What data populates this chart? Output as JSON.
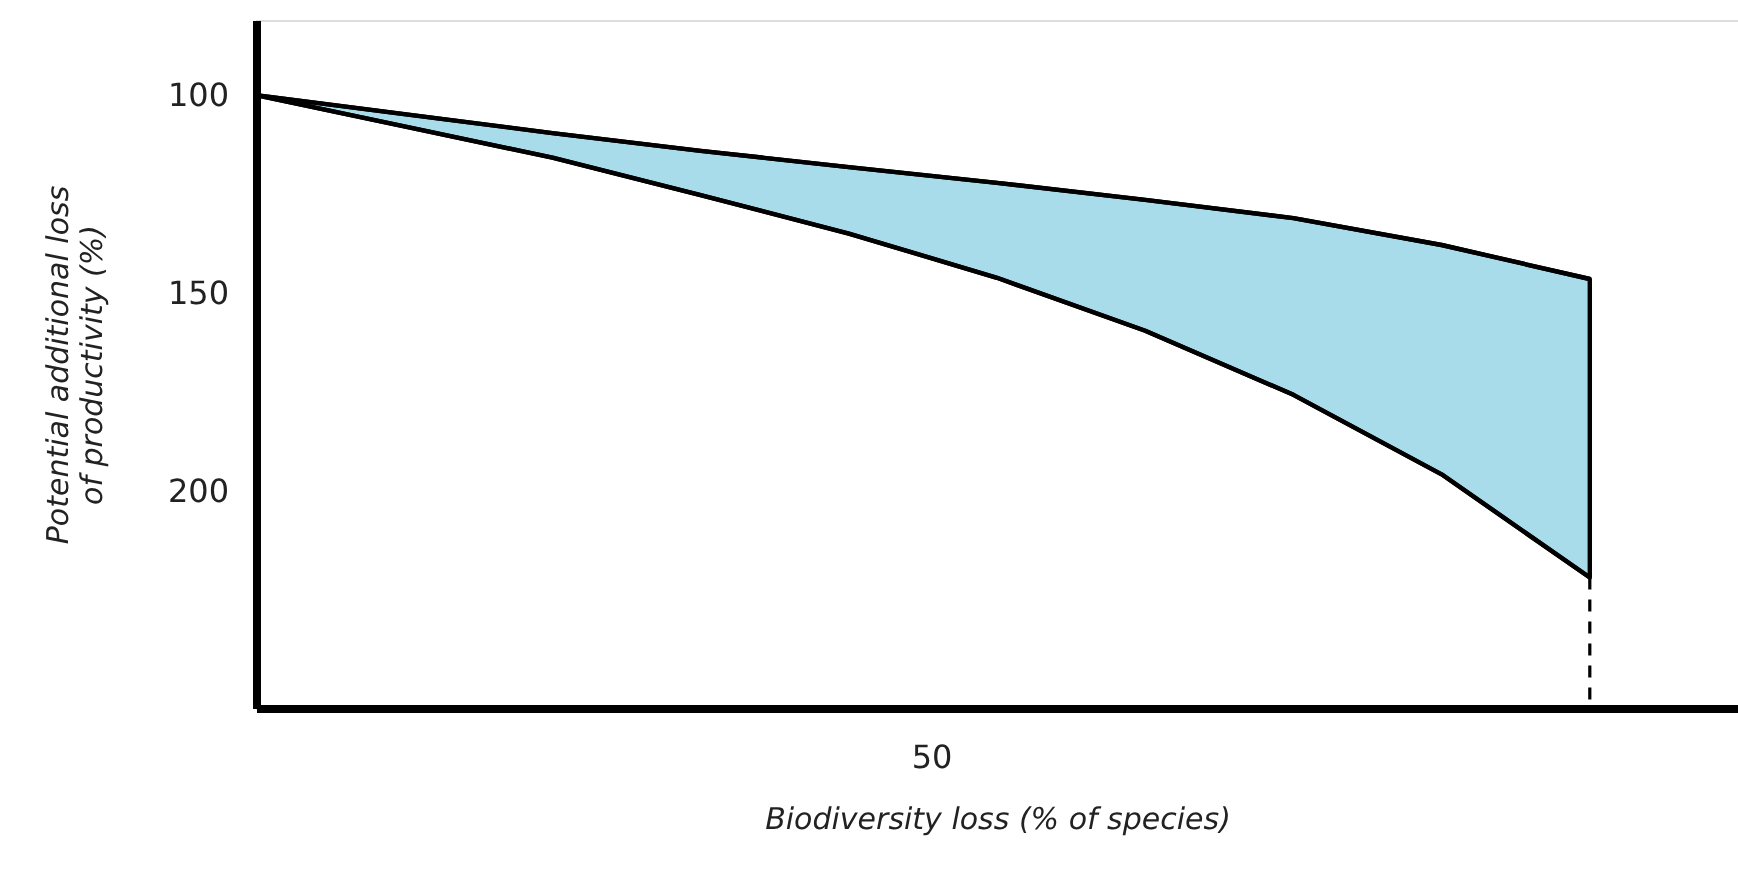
{
  "chart_data": {
    "type": "line",
    "xlabel": "Biodiversity loss (% of species)",
    "ylabel": "Potential additional loss\nof productivity (%)",
    "categories": [
      null,
      null,
      null,
      null,
      null,
      null,
      null,
      null,
      null,
      null
    ],
    "ylim": [
      255,
      81
    ],
    "yticks": [
      100,
      150,
      200
    ],
    "annotations": [
      "50"
    ],
    "grid": false,
    "series": [
      {
        "color": "#000000",
        "values": [
          100,
          104.8,
          109.6,
          114.1,
          118.2,
          122.2,
          126.5,
          131.1,
          137.9,
          146.5
        ],
        "upper": [
          100,
          104.8,
          109.6,
          114.1,
          118.2,
          122.2,
          126.5,
          131.1,
          137.9,
          146.5
        ],
        "lower": [
          100,
          107.9,
          115.8,
          125.3,
          135,
          146.2,
          159.6,
          175.8,
          195.9,
          222
        ]
      },
      {
        "color": "#000000",
        "values": [
          100,
          107.9,
          115.8,
          125.3,
          135,
          146.2,
          159.6,
          175.8,
          195.9,
          222
        ],
        "errors": [
          null,
          null,
          null,
          null,
          null,
          null,
          null,
          null,
          null,
          [
            222,
            255
          ]
        ]
      }
    ]
  }
}
